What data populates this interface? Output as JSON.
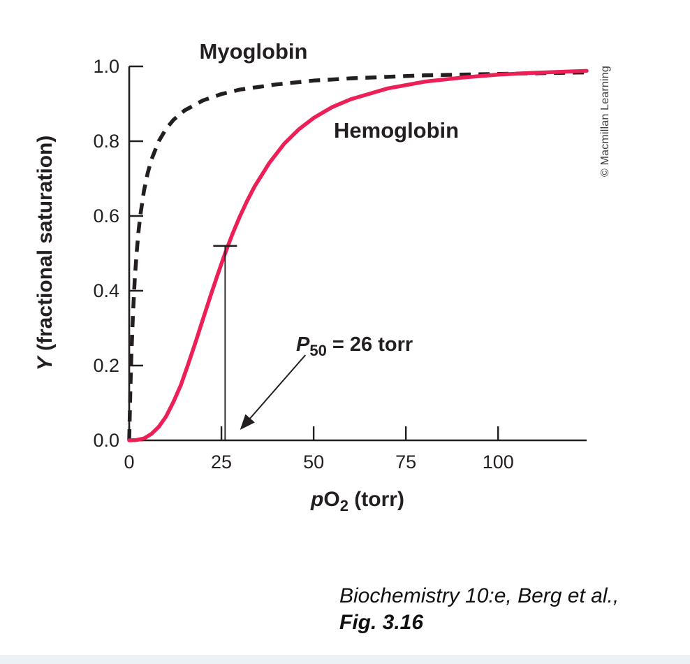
{
  "figure": {
    "credit": "© Macmillan Learning",
    "citation_line1": "Biochemistry 10:e, Berg et al.,",
    "citation_line2": "Fig. 3.16"
  },
  "chart_data": {
    "type": "line",
    "title": "",
    "xlabel": {
      "italic": "p",
      "main": "O",
      "sub": "2",
      "suffix": " (torr)"
    },
    "ylabel": {
      "italic": "Y",
      "suffix": " (fractional saturation)"
    },
    "xlim": [
      0,
      124
    ],
    "ylim": [
      0,
      1.0
    ],
    "x_ticks": [
      0,
      25,
      50,
      75,
      100
    ],
    "y_ticks": [
      "0.0",
      "0.2",
      "0.4",
      "0.6",
      "0.8",
      "1.0"
    ],
    "grid": false,
    "legend": "inline-labels",
    "series": [
      {
        "name": "Myoglobin",
        "color": "#231f20",
        "dash": "dashed",
        "x": [
          0,
          0.3,
          0.6,
          1,
          1.5,
          2,
          2.5,
          3,
          4,
          5,
          6,
          8,
          10,
          12,
          15,
          20,
          25,
          30,
          40,
          50,
          60,
          80,
          100,
          124
        ],
        "y": [
          0,
          0.13,
          0.231,
          0.333,
          0.429,
          0.5,
          0.556,
          0.6,
          0.667,
          0.714,
          0.75,
          0.8,
          0.833,
          0.857,
          0.882,
          0.909,
          0.926,
          0.938,
          0.952,
          0.962,
          0.968,
          0.976,
          0.98,
          0.984
        ]
      },
      {
        "name": "Hemoglobin",
        "color": "#ec2056",
        "dash": "solid",
        "x": [
          0,
          2,
          4,
          6,
          8,
          10,
          12,
          14,
          16,
          18,
          20,
          22,
          24,
          26,
          28,
          30,
          32,
          34,
          38,
          42,
          46,
          50,
          55,
          60,
          70,
          80,
          90,
          100,
          110,
          124
        ],
        "y": [
          0,
          0.001,
          0.005,
          0.017,
          0.036,
          0.064,
          0.103,
          0.148,
          0.204,
          0.263,
          0.324,
          0.385,
          0.444,
          0.5,
          0.552,
          0.599,
          0.641,
          0.679,
          0.742,
          0.793,
          0.832,
          0.862,
          0.891,
          0.912,
          0.941,
          0.959,
          0.97,
          0.978,
          0.983,
          0.988
        ]
      }
    ],
    "annotation": {
      "p50_symbol": "P",
      "p50_sub": "50",
      "p50_value": " = 26 torr",
      "p50_x": 26,
      "p50_y": 0.5,
      "marker_top_y": 0.52
    }
  }
}
